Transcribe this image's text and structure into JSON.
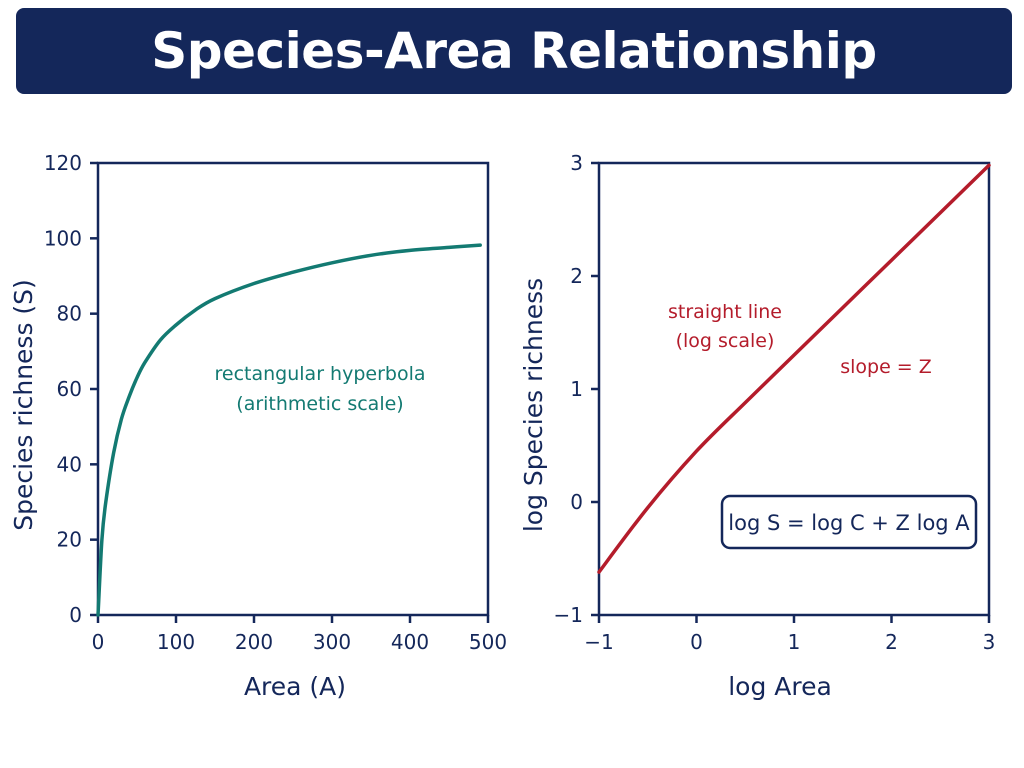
{
  "header": {
    "title": "Species-Area Relationship"
  },
  "colors": {
    "navy": "#14275a",
    "teal": "#137a72",
    "red": "#b41c2b",
    "white": "#ffffff"
  },
  "chart_data": [
    {
      "type": "line",
      "xlabel": "Area (A)",
      "ylabel": "Species richness (S)",
      "xlim": [
        0,
        500
      ],
      "ylim": [
        0,
        120
      ],
      "xticks": [
        "0",
        "100",
        "200",
        "300",
        "400",
        "500"
      ],
      "yticks": [
        "0",
        "20",
        "40",
        "60",
        "80",
        "100",
        "120"
      ],
      "series": [
        {
          "color": "#137a72",
          "x": [
            0,
            5,
            10,
            20,
            30,
            40,
            50,
            60,
            80,
            100,
            125,
            150,
            200,
            250,
            300,
            350,
            400,
            450,
            490
          ],
          "y": [
            0,
            20,
            30,
            43,
            52,
            58,
            63,
            67,
            73,
            77,
            81,
            84,
            88,
            91,
            93.5,
            95.5,
            96.8,
            97.6,
            98.2
          ]
        }
      ],
      "annotations": [
        "rectangular hyperbola",
        "(arithmetic scale)"
      ]
    },
    {
      "type": "line",
      "xlabel": "log Area",
      "ylabel": "log Species richness",
      "xlim": [
        -1,
        3
      ],
      "ylim": [
        -1,
        3
      ],
      "xticks": [
        "−1",
        "0",
        "1",
        "2",
        "3"
      ],
      "yticks": [
        "−1",
        "0",
        "1",
        "2",
        "3"
      ],
      "series": [
        {
          "color": "#b41c2b",
          "x": [
            -1,
            -0.5,
            0,
            0.5,
            1,
            1.5,
            2,
            2.5,
            3
          ],
          "y": [
            -0.62,
            -0.05,
            0.45,
            0.88,
            1.3,
            1.72,
            2.14,
            2.56,
            2.98
          ]
        }
      ],
      "annotations": [
        "straight line",
        "(log scale)",
        "slope = Z"
      ],
      "equation": "log S = log C + Z log A"
    }
  ]
}
